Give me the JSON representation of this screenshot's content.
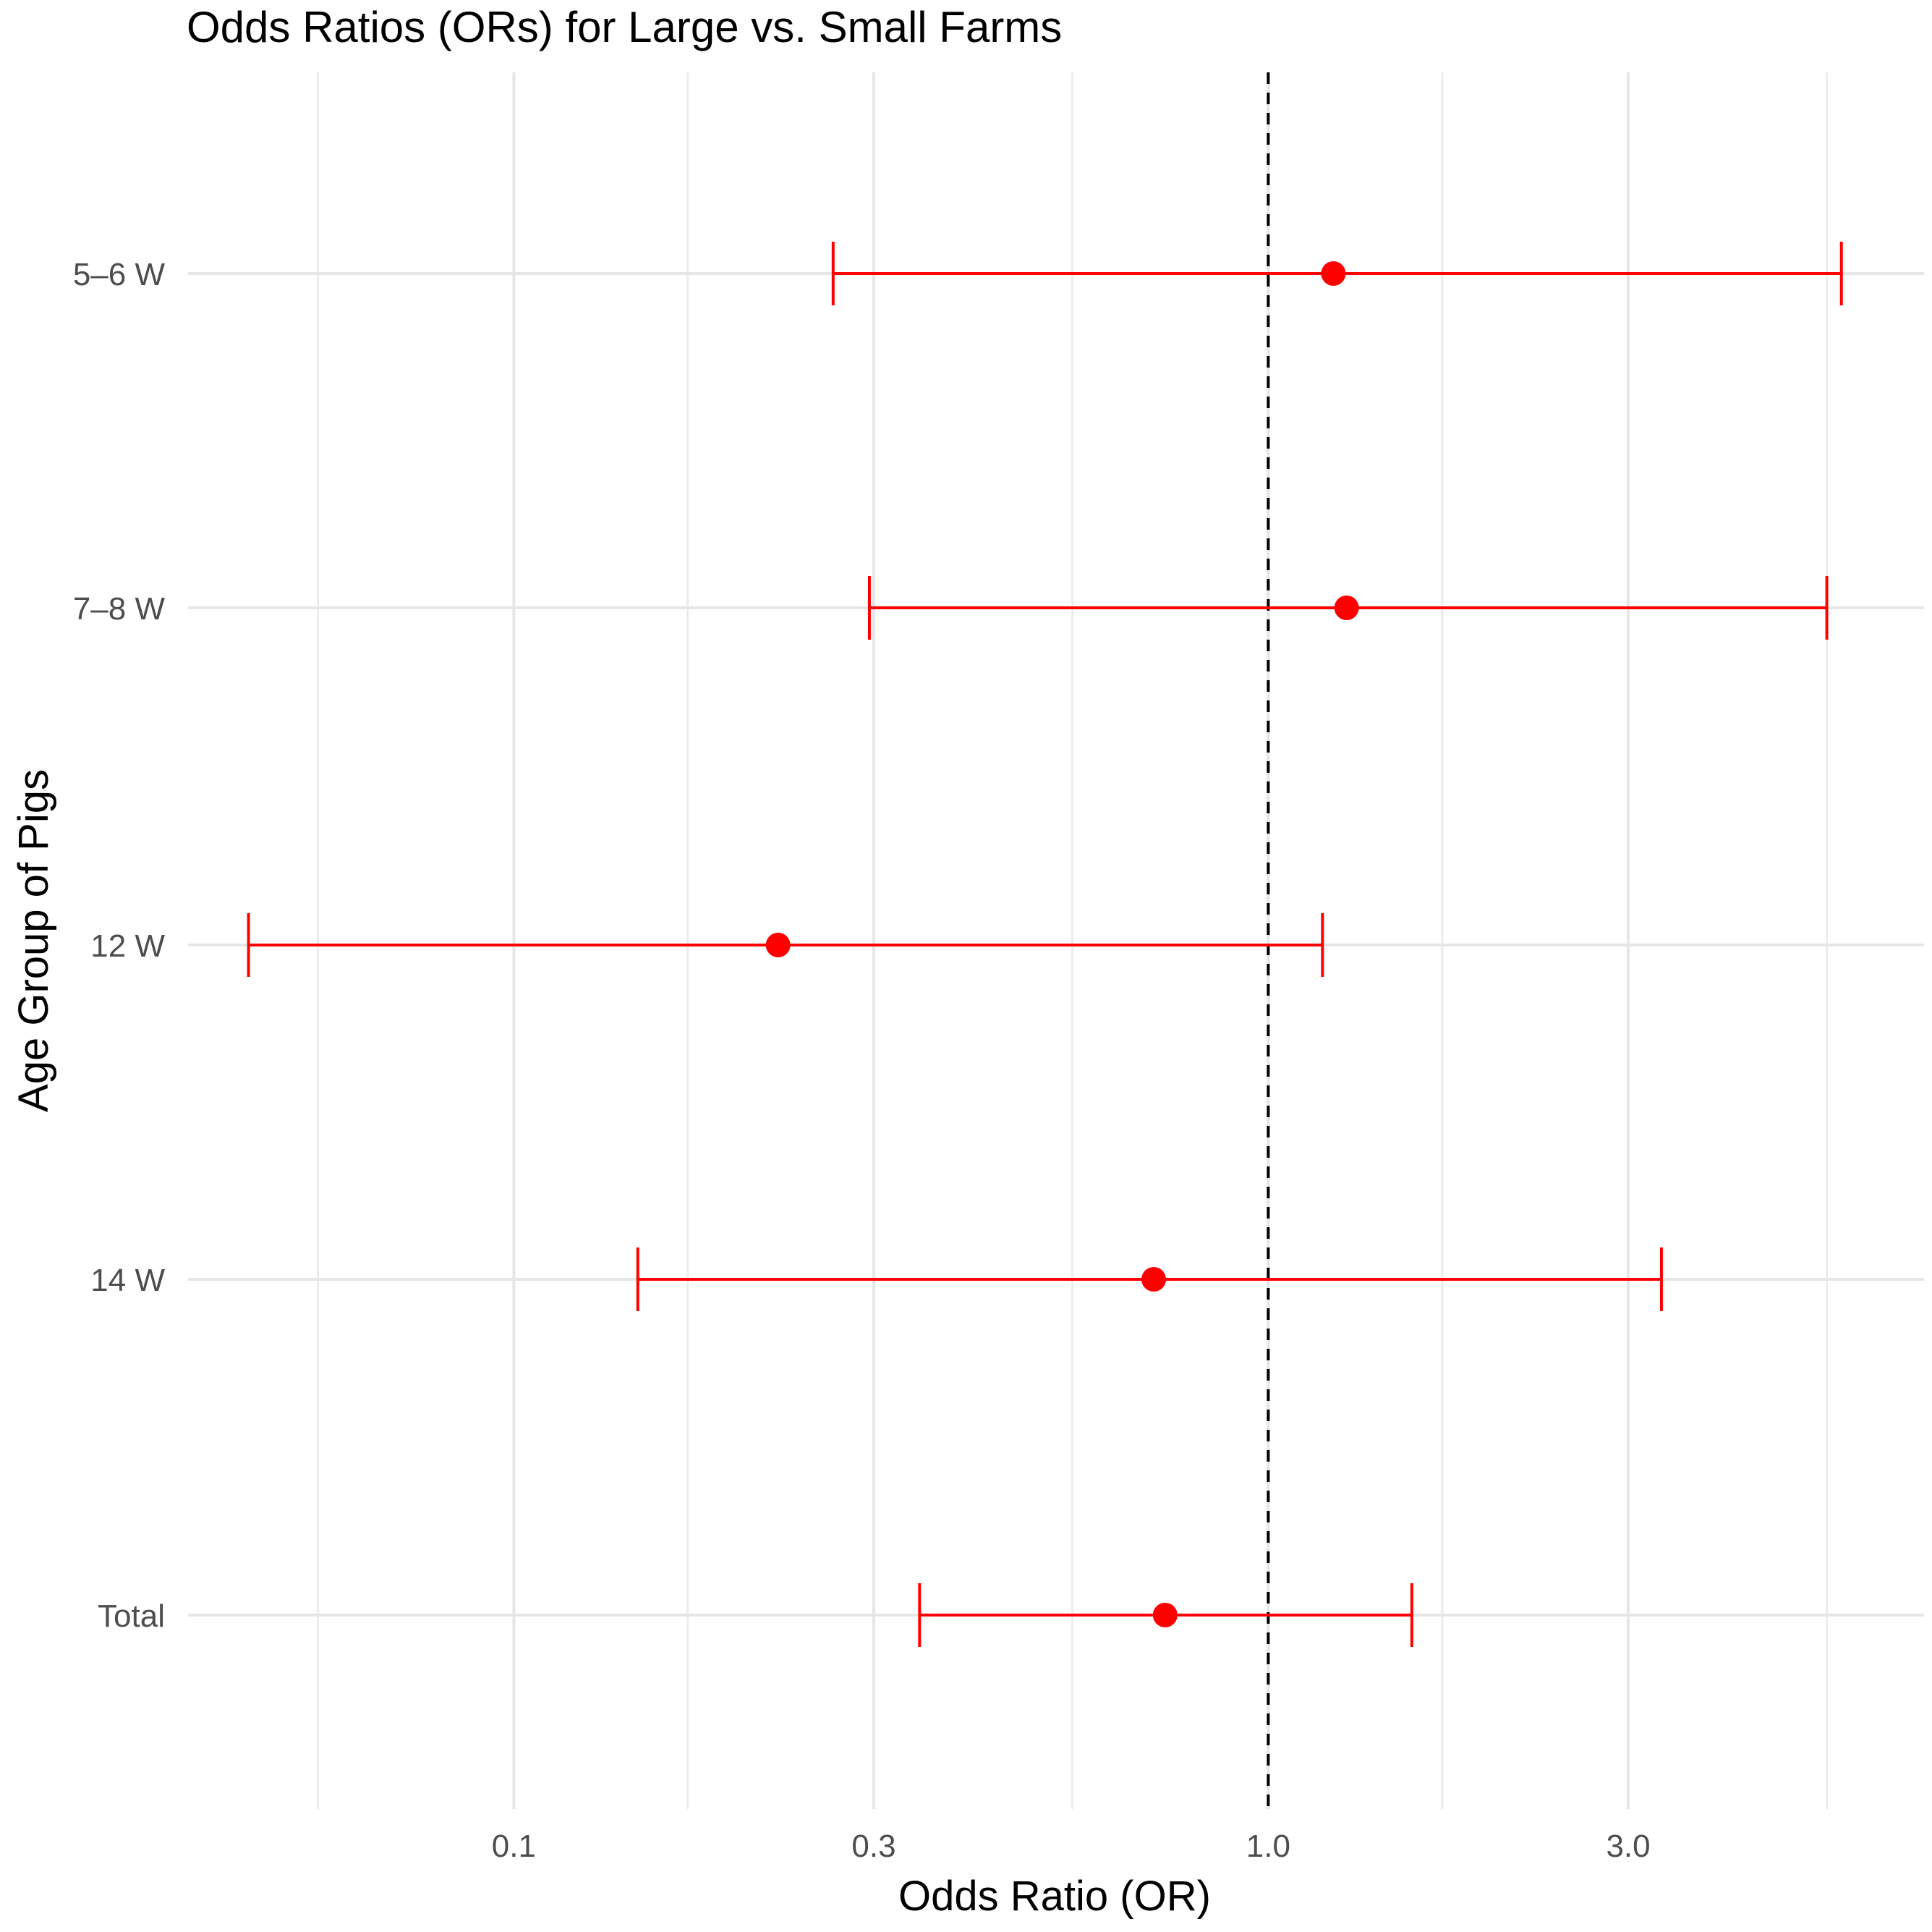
{
  "chart_data": {
    "type": "forest",
    "title": "Odds Ratios (ORs) for Large vs. Small Farms",
    "xlabel": "Odds Ratio (OR)",
    "ylabel": "Age Group of Pigs",
    "x_scale": "log10",
    "xlim": [
      0.037,
      7.4
    ],
    "x_ticks": [
      {
        "value": 0.1,
        "label": "0.1"
      },
      {
        "value": 0.3,
        "label": "0.3"
      },
      {
        "value": 1.0,
        "label": "1.0"
      },
      {
        "value": 3.0,
        "label": "3.0"
      }
    ],
    "x_minor_grid": [
      0.055,
      0.17,
      0.55,
      1.7,
      5.5
    ],
    "reference_line": {
      "x": 1.0,
      "style": "dashed"
    },
    "categories": [
      "5–6 W",
      "7–8 W",
      "12 W",
      "14 W",
      "Total"
    ],
    "series": [
      {
        "name": "OR",
        "color": "#ff0000",
        "points": [
          {
            "group": "5–6 W",
            "or": 1.22,
            "lower": 0.265,
            "upper": 5.75
          },
          {
            "group": "7–8 W",
            "or": 1.27,
            "lower": 0.296,
            "upper": 5.5
          },
          {
            "group": "12 W",
            "or": 0.224,
            "lower": 0.0445,
            "upper": 1.18
          },
          {
            "group": "14 W",
            "or": 0.705,
            "lower": 0.146,
            "upper": 3.32
          },
          {
            "group": "Total",
            "or": 0.73,
            "lower": 0.345,
            "upper": 1.55
          }
        ]
      }
    ],
    "grid": true,
    "legend": "none"
  }
}
